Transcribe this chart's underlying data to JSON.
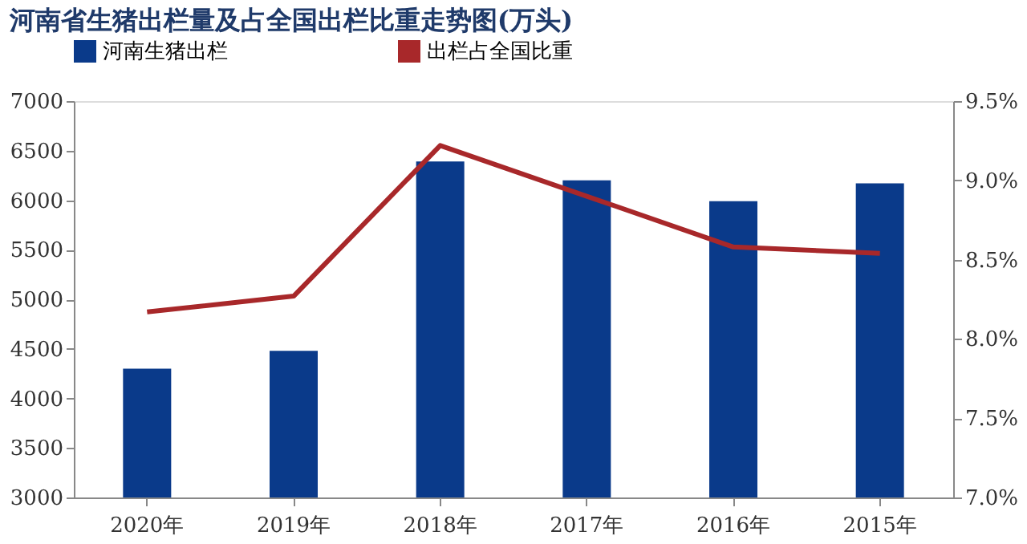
{
  "chart_data": {
    "type": "bar",
    "title": "河南省生猪出栏量及占全国出栏比重走势图(万头)",
    "categories": [
      "2020年",
      "2019年",
      "2018年",
      "2017年",
      "2016年",
      "2015年"
    ],
    "series": [
      {
        "name": "河南生猪出栏",
        "color": "#0a3a8a",
        "values": [
          4300,
          4480,
          6390,
          6200,
          5990,
          6170
        ]
      },
      {
        "name": "出栏占全国比重",
        "type": "line",
        "axis": "y2",
        "color": "#a8282a",
        "values": [
          8.17,
          8.27,
          9.22,
          8.9,
          8.58,
          8.54
        ]
      }
    ],
    "ylim": [
      3000,
      7000
    ],
    "yticks": [
      3000,
      3500,
      4000,
      4500,
      5000,
      5500,
      6000,
      6500,
      7000
    ],
    "y2lim": [
      7.0,
      9.5
    ],
    "y2ticks": [
      {
        "value": 7.0,
        "label": "7.0%"
      },
      {
        "value": 7.5,
        "label": "7.5%"
      },
      {
        "value": 8.0,
        "label": "8.0%"
      },
      {
        "value": 8.5,
        "label": "8.5%"
      },
      {
        "value": 9.0,
        "label": "9.0%"
      },
      {
        "value": 9.5,
        "label": "9.5%"
      }
    ],
    "grid": false,
    "legend": "top",
    "marker": "none",
    "line_style": "solid"
  }
}
